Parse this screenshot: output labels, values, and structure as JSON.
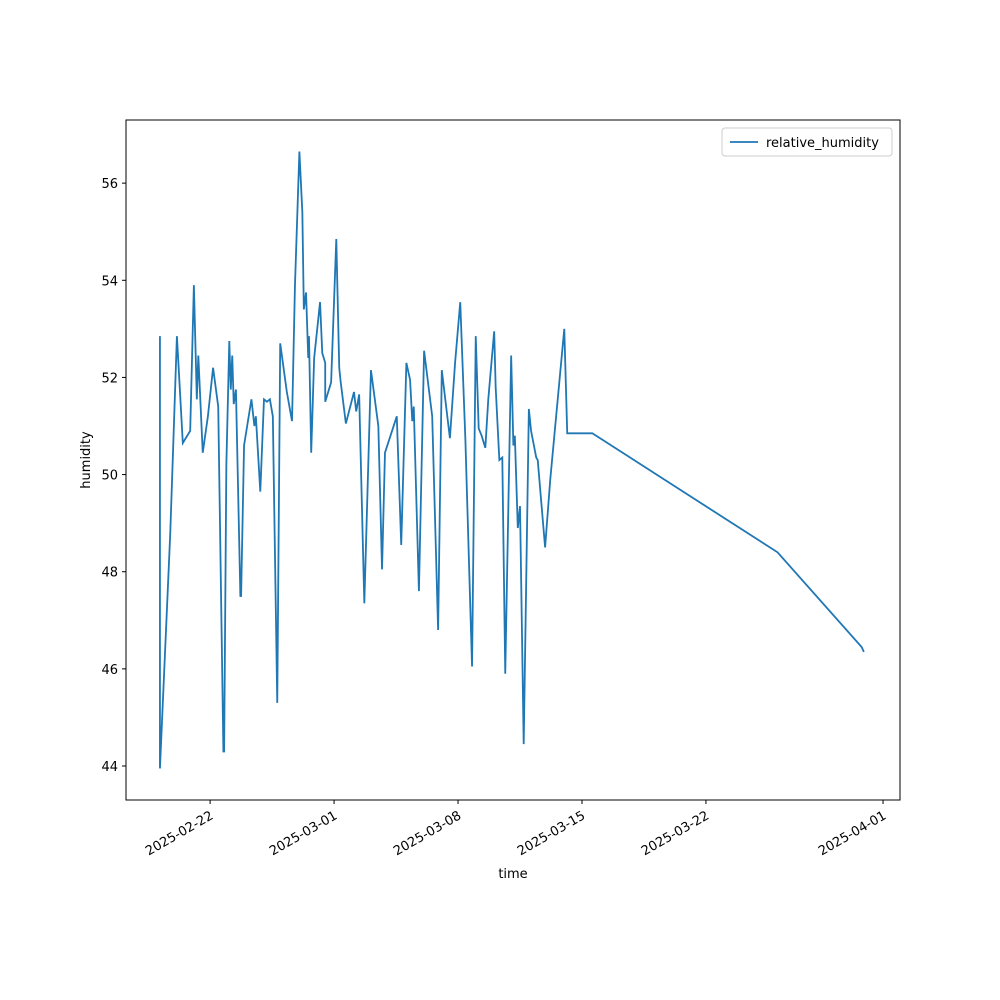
{
  "chart_data": {
    "type": "line",
    "x": [
      "2025-02-19T04:00",
      "2025-02-19T04:00",
      "2025-02-19T18:00",
      "2025-02-20T03:00",
      "2025-02-20T11:00",
      "2025-02-20T21:00",
      "2025-02-21T02:00",
      "2025-02-21T06:00",
      "2025-02-21T08:00",
      "2025-02-21T14:00",
      "2025-02-21T21:00",
      "2025-02-22T04:00",
      "2025-02-22T11:00",
      "2025-02-22T18:00",
      "2025-02-22T19:00",
      "2025-02-22T22:00",
      "2025-02-23T02:00",
      "2025-02-23T04:00",
      "2025-02-23T06:00",
      "2025-02-23T08:00",
      "2025-02-23T11:00",
      "2025-02-23T17:00",
      "2025-02-23T18:00",
      "2025-02-23T22:00",
      "2025-02-24T08:00",
      "2025-02-24T12:00",
      "2025-02-24T14:00",
      "2025-02-24T20:00",
      "2025-02-25T01:00",
      "2025-02-25T05:00",
      "2025-02-25T09:00",
      "2025-02-25T13:00",
      "2025-02-25T19:00",
      "2025-02-25T23:00",
      "2025-02-26T08:00",
      "2025-02-26T15:00",
      "2025-02-26T19:00",
      "2025-02-27T01:00",
      "2025-02-27T05:00",
      "2025-02-27T07:00",
      "2025-02-27T10:00",
      "2025-02-27T13:00",
      "2025-02-27T14:00",
      "2025-02-27T17:00",
      "2025-02-27T21:00",
      "2025-02-28T05:00",
      "2025-02-28T08:00",
      "2025-02-28T12:00",
      "2025-02-28T12:00",
      "2025-02-28T20:00",
      "2025-03-01T03:00",
      "2025-03-01T07:00",
      "2025-03-01T09:00",
      "2025-03-01T16:00",
      "2025-03-02T03:00",
      "2025-03-02T06:00",
      "2025-03-02T10:00",
      "2025-03-02T17:00",
      "2025-03-03T02:00",
      "2025-03-03T12:00",
      "2025-03-03T17:00",
      "2025-03-03T21:00",
      "2025-03-04T13:00",
      "2025-03-04T19:00",
      "2025-03-05T02:00",
      "2025-03-05T07:00",
      "2025-03-05T10:00",
      "2025-03-05T12:00",
      "2025-03-05T19:00",
      "2025-03-06T02:00",
      "2025-03-06T13:00",
      "2025-03-06T21:00",
      "2025-03-07T02:00",
      "2025-03-07T13:00",
      "2025-03-07T20:00",
      "2025-03-08T03:00",
      "2025-03-08T10:00",
      "2025-03-08T19:00",
      "2025-03-09T00:00",
      "2025-03-09T04:00",
      "2025-03-09T08:00",
      "2025-03-09T13:00",
      "2025-03-09T17:00",
      "2025-03-10T01:00",
      "2025-03-10T03:00",
      "2025-03-10T08:00",
      "2025-03-10T12:00",
      "2025-03-10T16:00",
      "2025-03-11T00:00",
      "2025-03-11T03:00",
      "2025-03-11T05:00",
      "2025-03-11T09:00",
      "2025-03-11T12:00",
      "2025-03-11T17:00",
      "2025-03-12T00:00",
      "2025-03-12T03:00",
      "2025-03-12T10:00",
      "2025-03-12T12:00",
      "2025-03-12T22:00",
      "2025-03-13T05:00",
      "2025-03-14T00:00",
      "2025-03-14T04:00",
      "2025-03-15T14:00",
      "2025-03-26T01:00",
      "2025-03-30T19:00",
      "2025-03-30T22:00"
    ],
    "series": [
      {
        "name": "relative_humidity",
        "color": "#1f77b4",
        "values": [
          52.85,
          43.95,
          48.8,
          52.85,
          50.65,
          50.9,
          53.9,
          51.55,
          52.45,
          50.45,
          51.2,
          52.2,
          51.4,
          44.3,
          44.3,
          50.2,
          52.75,
          51.75,
          52.45,
          51.45,
          51.75,
          47.5,
          47.5,
          50.6,
          51.55,
          51.0,
          51.2,
          49.65,
          51.55,
          51.5,
          51.55,
          51.2,
          45.3,
          52.7,
          51.7,
          51.1,
          53.9,
          56.65,
          55.4,
          53.4,
          53.75,
          52.4,
          52.85,
          50.45,
          52.4,
          53.55,
          52.5,
          52.3,
          51.5,
          51.9,
          54.85,
          52.2,
          51.9,
          51.05,
          51.7,
          51.3,
          51.65,
          47.35,
          52.15,
          51.0,
          48.05,
          50.45,
          51.2,
          48.55,
          52.3,
          51.95,
          51.1,
          51.4,
          47.6,
          52.55,
          51.2,
          46.8,
          52.15,
          50.75,
          52.3,
          53.55,
          50.7,
          46.05,
          52.85,
          50.95,
          50.8,
          50.55,
          51.55,
          52.95,
          51.8,
          50.3,
          50.35,
          45.9,
          52.45,
          50.6,
          50.8,
          48.9,
          49.35,
          44.45,
          51.35,
          50.9,
          50.35,
          50.3,
          48.5,
          49.9,
          53.0,
          50.85,
          50.85,
          48.4,
          46.45,
          46.35
        ]
      }
    ],
    "xlabel": "time",
    "ylabel": "humidity",
    "xlim": [
      "2025-02-17T06:00",
      "2025-04-01T23:00"
    ],
    "xticks": [
      "2025-02-22",
      "2025-03-01",
      "2025-03-08",
      "2025-03-15",
      "2025-03-22",
      "2025-04-01"
    ],
    "ylim": [
      43.3,
      57.3
    ],
    "yticks": [
      44,
      46,
      48,
      50,
      52,
      54,
      56
    ],
    "legend": "upper right"
  }
}
